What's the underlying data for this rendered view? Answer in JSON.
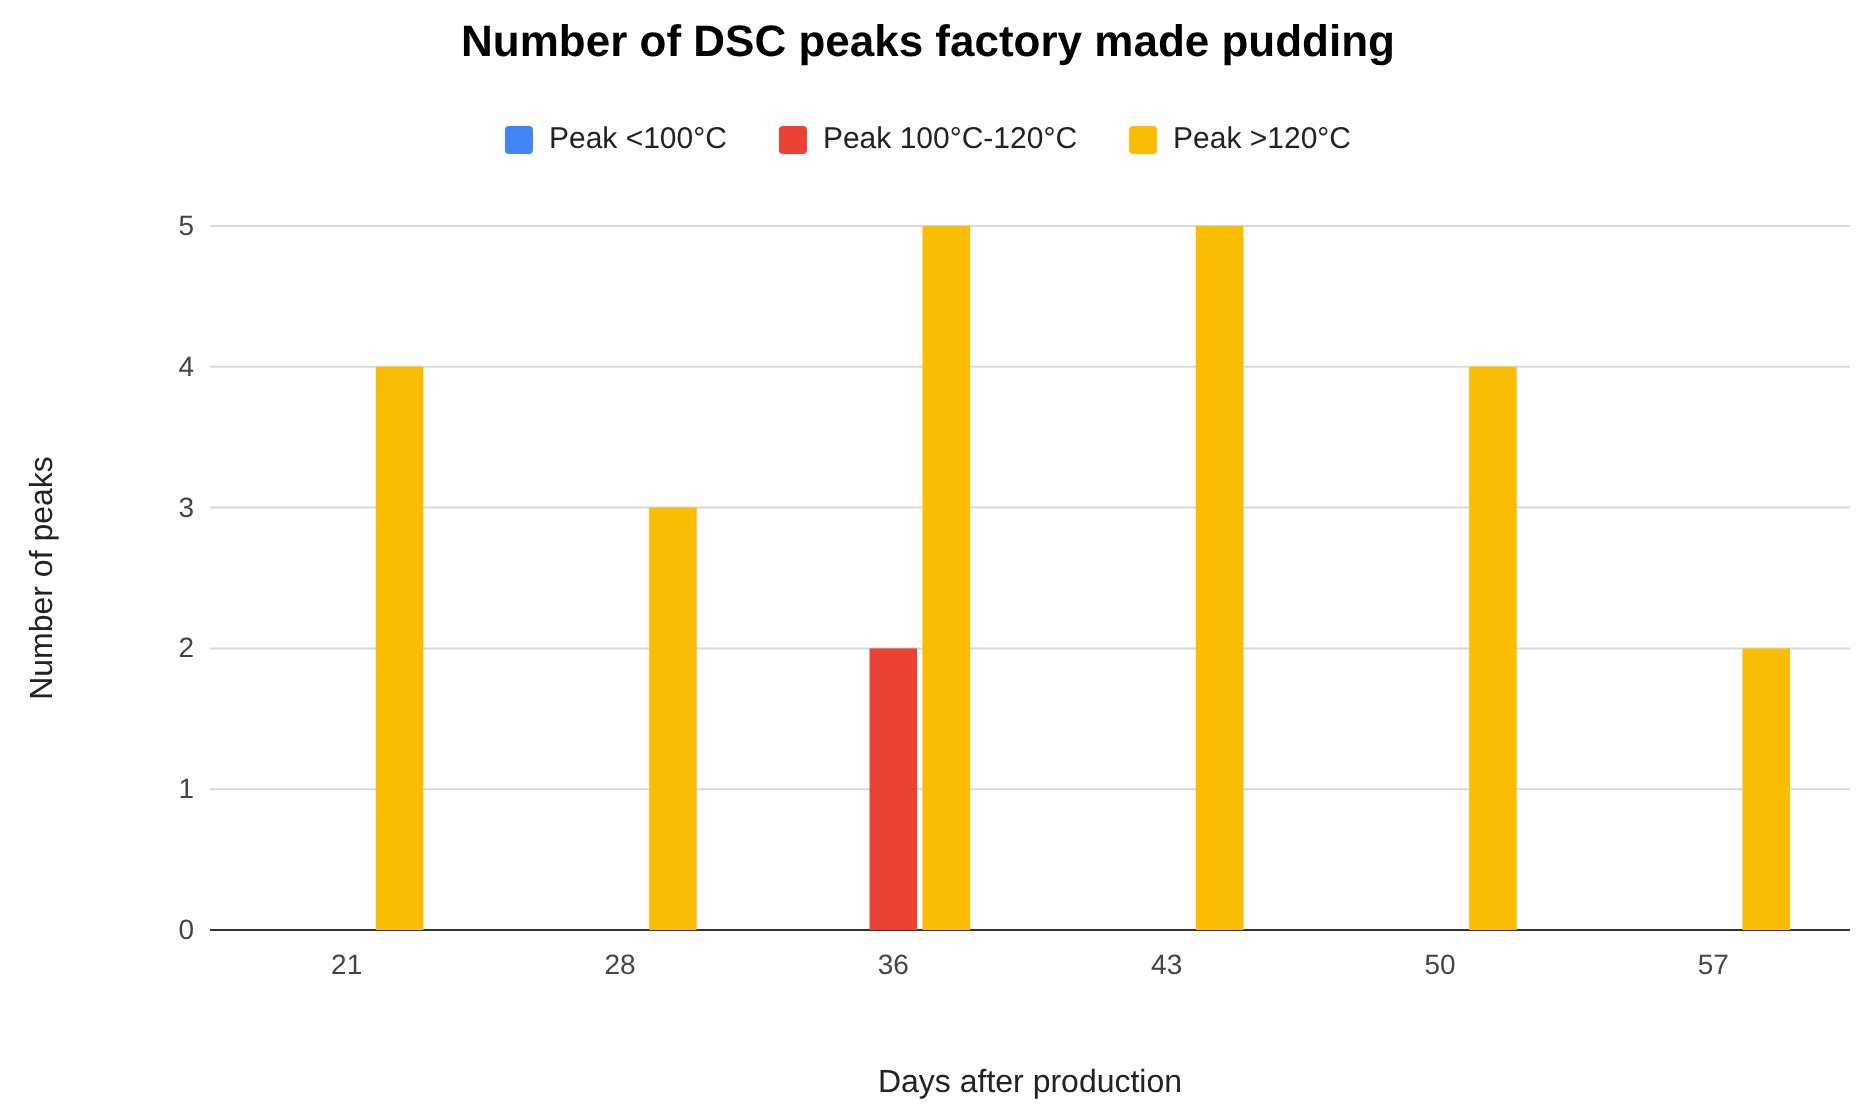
{
  "chart_data": {
    "type": "bar",
    "title": "Number of DSC peaks factory made pudding",
    "xlabel": "Days after production",
    "ylabel": "Number of peaks",
    "categories": [
      "21",
      "28",
      "36",
      "43",
      "50",
      "57"
    ],
    "series": [
      {
        "name": "Peak <100°C",
        "color": "#4285f4",
        "values": [
          0,
          0,
          0,
          0,
          0,
          0
        ]
      },
      {
        "name": "Peak 100°C-120°C",
        "color": "#ea4335",
        "values": [
          0,
          0,
          2,
          0,
          0,
          0
        ]
      },
      {
        "name": "Peak >120°C",
        "color": "#fbbc04",
        "values": [
          4,
          3,
          5,
          5,
          4,
          2
        ]
      }
    ],
    "ylim": [
      0,
      5
    ],
    "yticks": [
      0,
      1,
      2,
      3,
      4,
      5
    ],
    "grid": "y",
    "legend": "top"
  }
}
